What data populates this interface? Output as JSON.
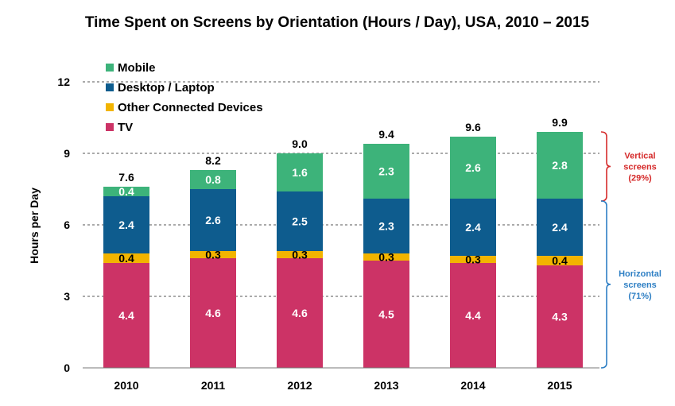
{
  "chart_data": {
    "type": "bar",
    "stacked": true,
    "title": "Time Spent on Screens by Orientation (Hours / Day), USA, 2010 – 2015",
    "ylabel": "Hours per Day",
    "xlabel": "",
    "ylim": [
      0,
      12
    ],
    "yticks": [
      "0",
      "3",
      "6",
      "9",
      "12"
    ],
    "grid": "dashed horizontal",
    "legend_position": "top-left",
    "categories": [
      "2010",
      "2011",
      "2012",
      "2013",
      "2014",
      "2015"
    ],
    "series": [
      {
        "name": "TV",
        "color": "#cc3366",
        "label_color": "#ffffff",
        "values": [
          4.4,
          4.6,
          4.6,
          4.5,
          4.4,
          4.3
        ],
        "labels": [
          "4.4",
          "4.6",
          "4.6",
          "4.5",
          "4.4",
          "4.3"
        ]
      },
      {
        "name": "Other Connected Devices",
        "color": "#f2b400",
        "label_color": "#000000",
        "values": [
          0.4,
          0.3,
          0.3,
          0.3,
          0.3,
          0.4
        ],
        "labels": [
          "0.4",
          "0.3",
          "0.3",
          "0.3",
          "0.3",
          "0.4"
        ]
      },
      {
        "name": "Desktop / Laptop",
        "color": "#0e5c8e",
        "label_color": "#ffffff",
        "values": [
          2.4,
          2.6,
          2.5,
          2.3,
          2.4,
          2.4
        ],
        "labels": [
          "2.4",
          "2.6",
          "2.5",
          "2.3",
          "2.4",
          "2.4"
        ]
      },
      {
        "name": "Mobile",
        "color": "#3db37a",
        "label_color": "#ffffff",
        "values": [
          0.4,
          0.8,
          1.6,
          2.3,
          2.6,
          2.8
        ],
        "labels": [
          "0.4",
          "0.8",
          "1.6",
          "2.3",
          "2.6",
          "2.8"
        ]
      }
    ],
    "legend_order": [
      "Mobile",
      "Desktop / Laptop",
      "Other Connected Devices",
      "TV"
    ],
    "totals": [
      "7.6",
      "8.2",
      "9.0",
      "9.4",
      "9.6",
      "9.9"
    ],
    "annotations": [
      {
        "lines": [
          "Vertical",
          "screens",
          "(29%)"
        ],
        "color": "#d52b2b",
        "from": 7.0,
        "to": 9.9
      },
      {
        "lines": [
          "Horizontal",
          "screens",
          "(71%)"
        ],
        "color": "#2e7fc4",
        "from": 0,
        "to": 7.0
      }
    ]
  }
}
